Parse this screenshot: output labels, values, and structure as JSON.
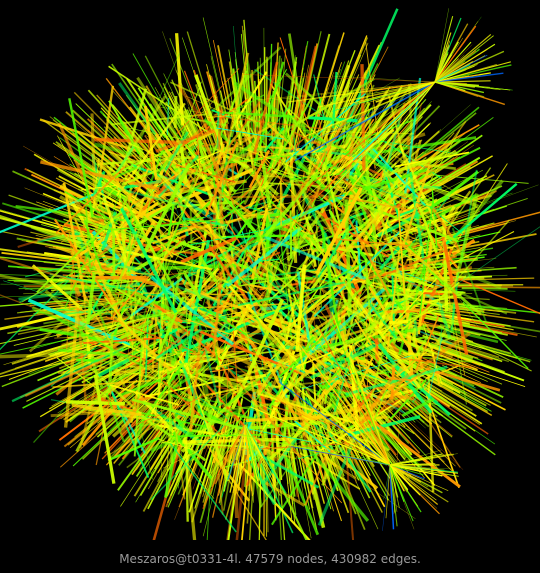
{
  "caption": "Meszaros@t0331-4l. 47579 nodes, 430982 edges.",
  "colors": {
    "background": "#000000",
    "caption_text": "#9a9a9a",
    "edge_palette": [
      "#ff6a00",
      "#ff9900",
      "#ffd400",
      "#ffff00",
      "#ccff00",
      "#99ff00",
      "#55ff00",
      "#00ff66",
      "#00ffcc",
      "#0066ff"
    ]
  }
}
